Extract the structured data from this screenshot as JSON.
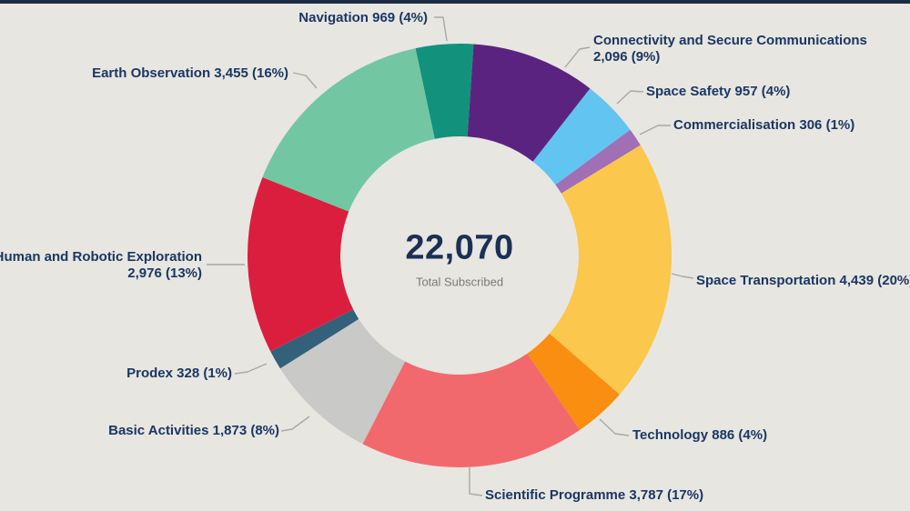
{
  "page": {
    "background_color": "#E7E6E1",
    "topbar_color": "#1D2C45",
    "label_text_color": "#1A3763"
  },
  "chart_data": {
    "type": "pie",
    "subtype": "donut",
    "title": "",
    "legend_position": "outside-labels",
    "direction": "clockwise",
    "start_angle_deg": -12,
    "total_value": 22070,
    "center": {
      "total_display": "22,070",
      "subtitle": "Total Subscribed"
    },
    "slices": [
      {
        "name": "Navigation",
        "value": 969,
        "pct": 4,
        "color": "#12927C",
        "label_lines": [
          "Navigation 969 (4%)"
        ]
      },
      {
        "name": "Connectivity and Secure Communications",
        "value": 2096,
        "pct": 9,
        "color": "#5B2380",
        "label_lines": [
          "Connectivity and Secure Communications",
          "2,096 (9%)"
        ]
      },
      {
        "name": "Space Safety",
        "value": 957,
        "pct": 4,
        "color": "#62C4F0",
        "label_lines": [
          "Space Safety 957 (4%)"
        ]
      },
      {
        "name": "Commercialisation",
        "value": 306,
        "pct": 1,
        "color": "#A06FB5",
        "label_lines": [
          "Commercialisation 306 (1%)"
        ]
      },
      {
        "name": "Space Transportation",
        "value": 4439,
        "pct": 20,
        "color": "#FBC74C",
        "label_lines": [
          "Space Transportation 4,439 (20%)"
        ]
      },
      {
        "name": "Technology",
        "value": 886,
        "pct": 4,
        "color": "#F98E11",
        "label_lines": [
          "Technology 886 (4%)"
        ]
      },
      {
        "name": "Scientific Programme",
        "value": 3787,
        "pct": 17,
        "color": "#F2696D",
        "label_lines": [
          "Scientific Programme 3,787 (17%)"
        ]
      },
      {
        "name": "Basic Activities",
        "value": 1873,
        "pct": 8,
        "color": "#C9C9C7",
        "label_lines": [
          "Basic Activities 1,873 (8%)"
        ]
      },
      {
        "name": "Prodex",
        "value": 328,
        "pct": 1,
        "color": "#33617A",
        "label_lines": [
          "Prodex 328 (1%)"
        ]
      },
      {
        "name": "Human and Robotic Exploration",
        "value": 2976,
        "pct": 13,
        "color": "#DB1E3D",
        "label_lines": [
          "Human and Robotic Exploration",
          "2,976 (13%)"
        ]
      },
      {
        "name": "Earth Observation",
        "value": 3455,
        "pct": 16,
        "color": "#72C7A2",
        "label_lines": [
          "Earth Observation 3,455 (16%)"
        ]
      }
    ]
  }
}
